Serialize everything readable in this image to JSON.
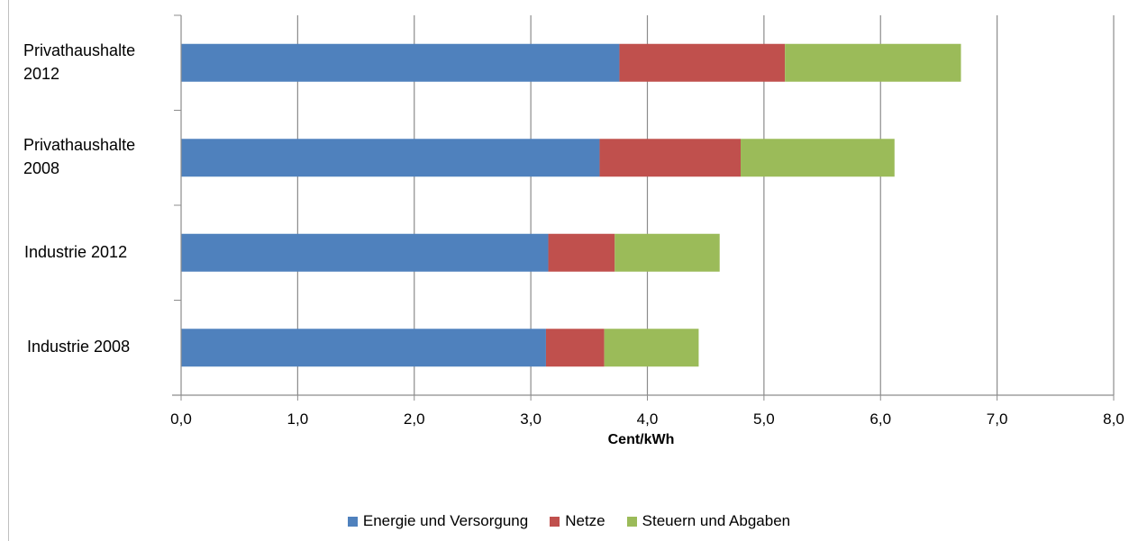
{
  "chart_data": {
    "type": "bar",
    "orientation": "horizontal",
    "stacked": true,
    "categories": [
      "Privathaushalte\n2012",
      "Privathaushalte\n2008",
      "Industrie  2012",
      "Industrie 2008"
    ],
    "series": [
      {
        "name": "Energie und Versorgung",
        "color": "#4f81bd",
        "values": [
          3.76,
          3.59,
          3.15,
          3.13
        ]
      },
      {
        "name": "Netze",
        "color": "#c0504d",
        "values": [
          1.42,
          1.21,
          0.57,
          0.5
        ]
      },
      {
        "name": "Steuern und Abgaben",
        "color": "#9bbb59",
        "values": [
          1.51,
          1.32,
          0.9,
          0.81
        ]
      }
    ],
    "xlabel": "Cent/kWh",
    "xlim": [
      0,
      8
    ],
    "xticks": [
      "0,0",
      "1,0",
      "2,0",
      "3,0",
      "4,0",
      "5,0",
      "6,0",
      "7,0",
      "8,0"
    ],
    "grid": "vertical",
    "legend": "bottom"
  }
}
